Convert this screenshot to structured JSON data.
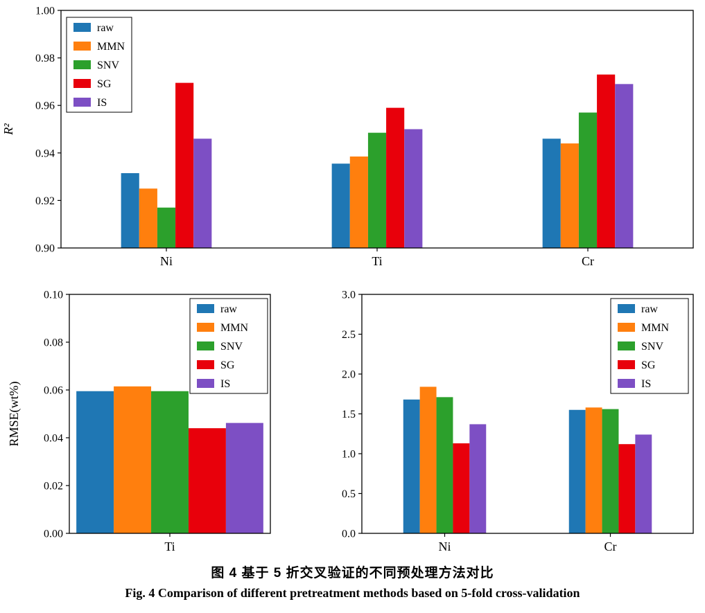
{
  "figure": {
    "caption_zh": "图 4  基于 5 折交叉验证的不同预处理方法对比",
    "caption_en": "Fig. 4  Comparison of different pretreatment methods based on 5-fold cross-validation"
  },
  "legend_labels": [
    "raw",
    "MMN",
    "SNV",
    "SG",
    "IS"
  ],
  "colors": {
    "raw": "#1f77b4",
    "MMN": "#ff7f0e",
    "SNV": "#2ca02c",
    "SG": "#e8000b",
    "IS": "#7d4fc4"
  },
  "chart_data": [
    {
      "id": "r2",
      "type": "bar",
      "title": "",
      "xlabel": "",
      "ylabel": "R²",
      "ylabel_italic": true,
      "categories": [
        "Ni",
        "Ti",
        "Cr"
      ],
      "series": [
        {
          "name": "raw",
          "color": "#1f77b4",
          "values": [
            0.9315,
            0.9355,
            0.946
          ]
        },
        {
          "name": "MMN",
          "color": "#ff7f0e",
          "values": [
            0.925,
            0.9385,
            0.944
          ]
        },
        {
          "name": "SNV",
          "color": "#2ca02c",
          "values": [
            0.917,
            0.9485,
            0.957
          ]
        },
        {
          "name": "SG",
          "color": "#e8000b",
          "values": [
            0.9695,
            0.959,
            0.973
          ]
        },
        {
          "name": "IS",
          "color": "#7d4fc4",
          "values": [
            0.946,
            0.95,
            0.969
          ]
        }
      ],
      "ylim": [
        0.9,
        1.0
      ],
      "yticks": [
        0.9,
        0.92,
        0.94,
        0.96,
        0.98,
        1.0
      ],
      "ytick_decimals": 2,
      "legend_position": "top-left",
      "grid": false
    },
    {
      "id": "rmse_ti",
      "type": "bar",
      "title": "",
      "xlabel": "",
      "ylabel": "RMSE(wt%)",
      "ylabel_italic": false,
      "categories": [
        "Ti"
      ],
      "series": [
        {
          "name": "raw",
          "color": "#1f77b4",
          "values": [
            0.0595
          ]
        },
        {
          "name": "MMN",
          "color": "#ff7f0e",
          "values": [
            0.0615
          ]
        },
        {
          "name": "SNV",
          "color": "#2ca02c",
          "values": [
            0.0595
          ]
        },
        {
          "name": "SG",
          "color": "#e8000b",
          "values": [
            0.044
          ]
        },
        {
          "name": "IS",
          "color": "#7d4fc4",
          "values": [
            0.0462
          ]
        }
      ],
      "ylim": [
        0.0,
        0.1
      ],
      "yticks": [
        0.0,
        0.02,
        0.04,
        0.06,
        0.08,
        0.1
      ],
      "ytick_decimals": 2,
      "legend_position": "top-right",
      "grid": false
    },
    {
      "id": "rmse_ni_cr",
      "type": "bar",
      "title": "",
      "xlabel": "",
      "ylabel": "",
      "ylabel_italic": false,
      "categories": [
        "Ni",
        "Cr"
      ],
      "series": [
        {
          "name": "raw",
          "color": "#1f77b4",
          "values": [
            1.68,
            1.55
          ]
        },
        {
          "name": "MMN",
          "color": "#ff7f0e",
          "values": [
            1.84,
            1.58
          ]
        },
        {
          "name": "SNV",
          "color": "#2ca02c",
          "values": [
            1.71,
            1.56
          ]
        },
        {
          "name": "SG",
          "color": "#e8000b",
          "values": [
            1.13,
            1.12
          ]
        },
        {
          "name": "IS",
          "color": "#7d4fc4",
          "values": [
            1.37,
            1.24
          ]
        }
      ],
      "ylim": [
        0.0,
        3.0
      ],
      "yticks": [
        0.0,
        0.5,
        1.0,
        1.5,
        2.0,
        2.5,
        3.0
      ],
      "ytick_decimals": 1,
      "legend_position": "top-right",
      "grid": false
    }
  ]
}
